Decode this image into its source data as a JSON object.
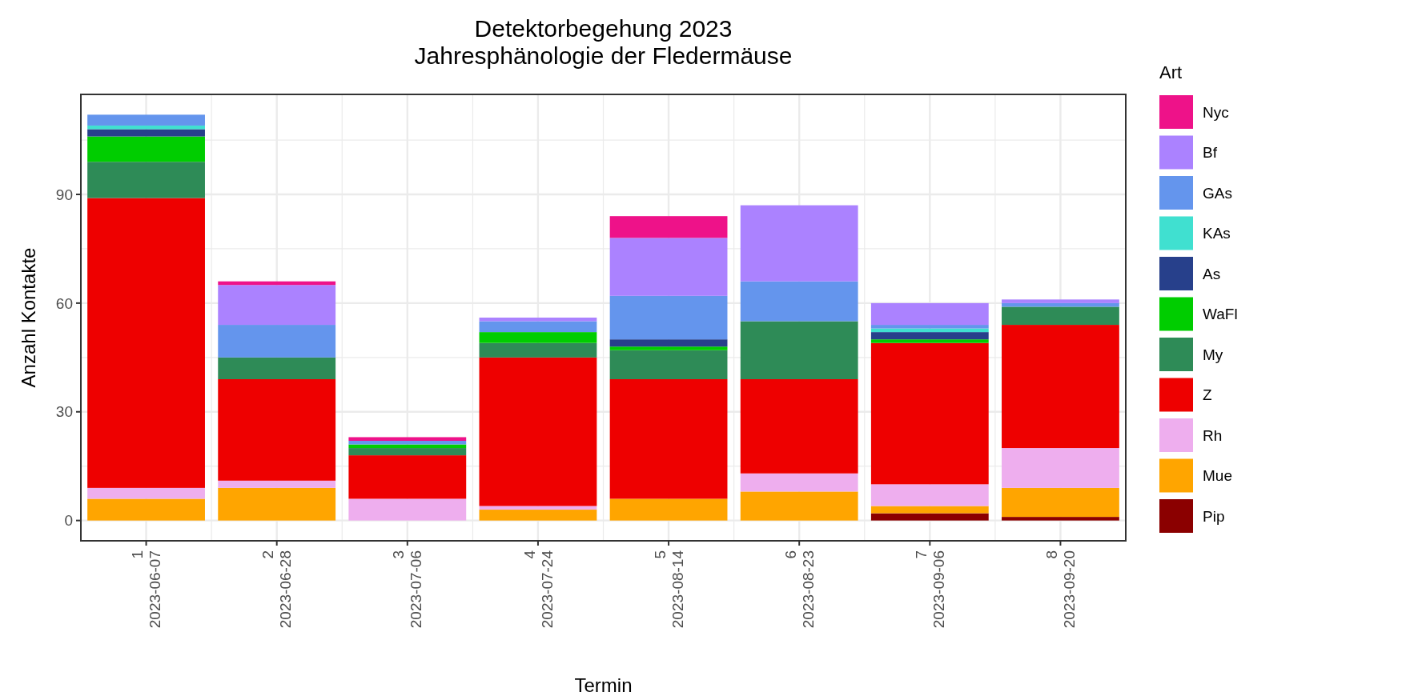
{
  "chart_data": {
    "type": "bar",
    "title": "Detektorbegehung 2023\nJahresphänologie der Fledermäuse",
    "xlabel": "Termin",
    "ylabel": "Anzahl Kontakte",
    "legend_title": "Art",
    "categories": [
      "1\n2023-06-07",
      "2\n2023-06-28",
      "3\n2023-07-06",
      "4\n2023-07-24",
      "5\n2023-08-14",
      "6\n2023-08-23",
      "7\n2023-09-06",
      "8\n2023-09-20"
    ],
    "stacked": true,
    "grid": true,
    "legend": "right",
    "ylim": [
      -5.6,
      117.6
    ],
    "yticks": [
      0,
      30,
      60,
      90
    ],
    "series": [
      {
        "name": "Pip",
        "color": "#8b0000",
        "values": [
          0,
          0,
          0,
          0,
          0,
          0,
          2,
          1
        ]
      },
      {
        "name": "Mue",
        "color": "#ffa500",
        "values": [
          6,
          9,
          0,
          3,
          6,
          8,
          2,
          8
        ]
      },
      {
        "name": "Rh",
        "color": "#eeaeee",
        "values": [
          3,
          2,
          6,
          1,
          0,
          5,
          6,
          11
        ]
      },
      {
        "name": "Z",
        "color": "#ee0000",
        "values": [
          80,
          28,
          12,
          41,
          33,
          26,
          39,
          34
        ]
      },
      {
        "name": "My",
        "color": "#2e8b57",
        "values": [
          10,
          6,
          2,
          4,
          8,
          16,
          0,
          5
        ]
      },
      {
        "name": "WaFl",
        "color": "#00cd00",
        "values": [
          7,
          0,
          1,
          3,
          1,
          0,
          1,
          0
        ]
      },
      {
        "name": "As",
        "color": "#27408b",
        "values": [
          2,
          0,
          0,
          0,
          2,
          0,
          2,
          0
        ]
      },
      {
        "name": "KAs",
        "color": "#40e0d0",
        "values": [
          1,
          0,
          0,
          0,
          0,
          0,
          1,
          0
        ]
      },
      {
        "name": "GAs",
        "color": "#6495ed",
        "values": [
          3,
          9,
          1,
          3,
          12,
          11,
          1,
          1
        ]
      },
      {
        "name": "Bf",
        "color": "#ab82ff",
        "values": [
          0,
          11,
          0,
          1,
          16,
          21,
          6,
          1
        ]
      },
      {
        "name": "Nyc",
        "color": "#ee1289",
        "values": [
          0,
          1,
          1,
          0,
          6,
          0,
          0,
          0
        ]
      }
    ]
  }
}
